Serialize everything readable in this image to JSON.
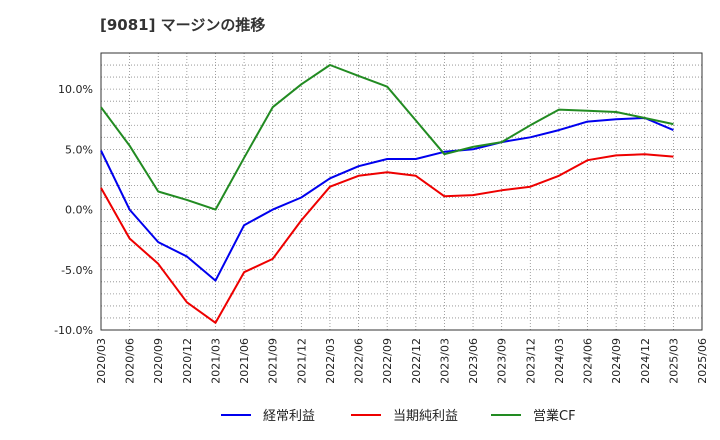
{
  "title": "[9081]  マージンの推移",
  "chart_data": {
    "type": "line",
    "title": "[9081]  マージンの推移",
    "x": [
      "2020/03",
      "2020/06",
      "2020/09",
      "2020/12",
      "2021/03",
      "2021/06",
      "2021/09",
      "2021/12",
      "2022/03",
      "2022/06",
      "2022/09",
      "2022/12",
      "2023/03",
      "2023/06",
      "2023/09",
      "2023/12",
      "2024/03",
      "2024/06",
      "2024/09",
      "2024/12",
      "2025/03",
      "2025/06"
    ],
    "y_ticks": [
      10.0,
      5.0,
      0.0,
      -5.0,
      -10.0
    ],
    "y_tick_labels": [
      "10.0%",
      "5.0%",
      "0.0%",
      "-5.0%",
      "-10.0%"
    ],
    "ylim": [
      -10.0,
      13.0
    ],
    "grid": true,
    "legend_position": "bottom",
    "series": [
      {
        "name": "経常利益",
        "color": "#0000ee",
        "values": [
          4.9,
          0.0,
          -2.7,
          -3.9,
          -5.9,
          -1.3,
          0.0,
          1.0,
          2.6,
          3.6,
          4.2,
          4.2,
          4.8,
          5.0,
          5.6,
          6.0,
          6.6,
          7.3,
          7.5,
          7.6,
          6.6,
          null
        ]
      },
      {
        "name": "当期純利益",
        "color": "#ee0000",
        "values": [
          1.8,
          -2.4,
          -4.5,
          -7.7,
          -9.4,
          -5.2,
          -4.1,
          -0.9,
          1.9,
          2.8,
          3.1,
          2.8,
          1.1,
          1.2,
          1.6,
          1.9,
          2.8,
          4.1,
          4.5,
          4.6,
          4.4,
          null
        ]
      },
      {
        "name": "営業CF",
        "color": "#228b22",
        "values": [
          8.5,
          5.3,
          1.5,
          0.8,
          0.0,
          4.3,
          8.5,
          10.4,
          12.0,
          11.1,
          10.2,
          7.4,
          4.6,
          5.2,
          5.6,
          7.0,
          8.3,
          8.2,
          8.1,
          7.6,
          7.1,
          null
        ]
      }
    ]
  }
}
